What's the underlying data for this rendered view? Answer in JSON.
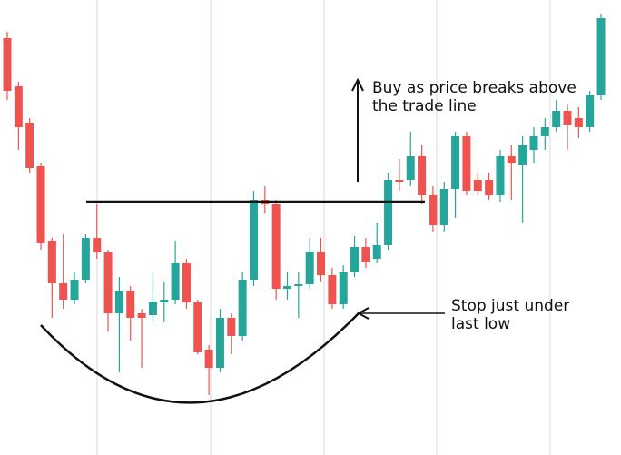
{
  "chart_data": {
    "type": "candlestick",
    "ylim": [
      0,
      501
    ],
    "up_color": "#26a69a",
    "down_color": "#ef5350",
    "open": [
      459,
      406,
      366,
      318,
      236,
      189,
      171,
      193,
      239,
      223,
      156,
      181,
      156,
      154,
      168,
      171,
      211,
      168,
      116,
      96,
      151,
      131,
      193,
      281,
      276,
      183,
      186,
      188,
      224,
      198,
      166,
      201,
      229,
      216,
      231,
      303,
      303,
      329,
      286,
      253,
      293,
      351,
      303,
      303,
      286,
      329,
      319,
      336,
      351,
      361,
      379,
      371,
      361,
      396
    ],
    "high": [
      466,
      411,
      371,
      321,
      239,
      243,
      201,
      243,
      276,
      226,
      196,
      186,
      161,
      201,
      191,
      236,
      216,
      171,
      121,
      161,
      156,
      201,
      291,
      296,
      281,
      201,
      201,
      239,
      239,
      206,
      209,
      241,
      239,
      256,
      311,
      326,
      356,
      341,
      296,
      301,
      356,
      356,
      311,
      311,
      336,
      341,
      351,
      361,
      371,
      391,
      386,
      383,
      401,
      486
    ],
    "low": [
      391,
      336,
      311,
      226,
      151,
      161,
      166,
      189,
      216,
      136,
      91,
      126,
      96,
      146,
      146,
      166,
      161,
      111,
      66,
      91,
      111,
      126,
      186,
      266,
      171,
      171,
      151,
      183,
      191,
      161,
      161,
      196,
      206,
      211,
      226,
      291,
      296,
      276,
      246,
      246,
      261,
      286,
      286,
      281,
      279,
      281,
      256,
      321,
      336,
      356,
      336,
      349,
      356,
      391
    ],
    "close": [
      401,
      361,
      316,
      233,
      189,
      171,
      193,
      239,
      223,
      156,
      181,
      151,
      151,
      169,
      171,
      211,
      168,
      113,
      96,
      151,
      131,
      193,
      281,
      276,
      183,
      186,
      188,
      224,
      198,
      166,
      201,
      229,
      213,
      231,
      303,
      301,
      329,
      286,
      253,
      293,
      351,
      291,
      291,
      286,
      329,
      321,
      341,
      351,
      361,
      379,
      363,
      361,
      396,
      481
    ],
    "annotations": [
      [
        "Buy as price breaks above",
        "the trade line"
      ],
      [
        "Stop just under",
        "last low"
      ]
    ]
  }
}
